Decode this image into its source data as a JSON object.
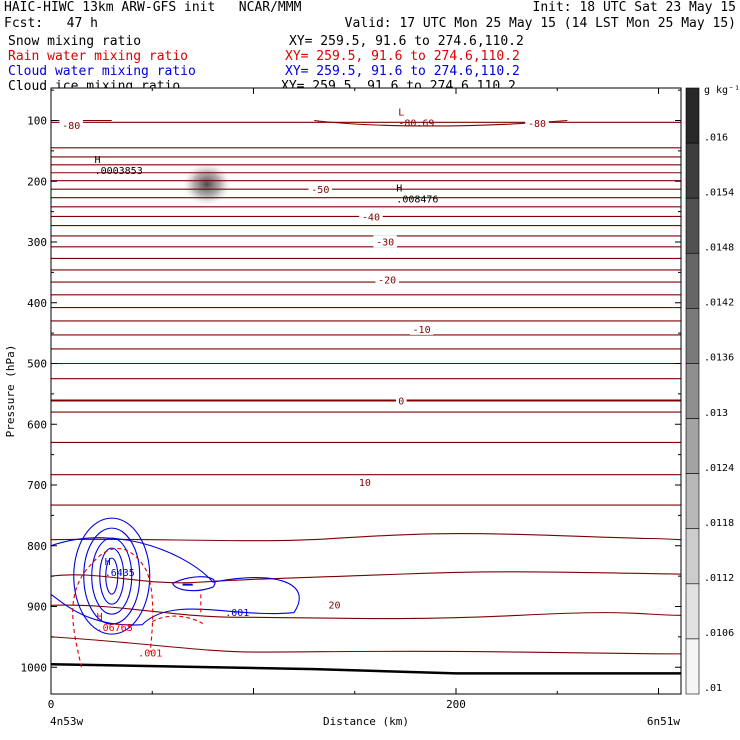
{
  "header": {
    "title_left": "HAIC-HIWC 13km ARW-GFS init   NCAR/MMM",
    "title_right": "Init: 18 UTC Sat 23 May 15",
    "fcst": "Fcst:   47 h",
    "valid": "Valid: 17 UTC Mon 25 May 15 (14 LST Mon 25 May 15)",
    "fields": [
      {
        "name": "Snow mixing ratio",
        "xy": "XY= 259.5, 91.6 to 274.6,110.2",
        "color": "#000000"
      },
      {
        "name": "Rain water mixing ratio",
        "xy": "XY= 259.5, 91.6 to 274.6,110.2",
        "color": "#e00000"
      },
      {
        "name": "Cloud water mixing ratio",
        "xy": "XY= 259.5, 91.6 to 274.6,110.2",
        "color": "#0000dd"
      },
      {
        "name": "Cloud ice mixing ratio",
        "xy": "XY= 259.5, 91.6 to 274.6,110.2",
        "color": "#000000"
      }
    ]
  },
  "chart_data": {
    "type": "contour",
    "xlabel": "Distance (km)",
    "ylabel": "Pressure (hPa)",
    "xlim": [
      0,
      300
    ],
    "ylim": [
      1050,
      50
    ],
    "x_ticks": [
      {
        "value": 0,
        "label": "0"
      },
      {
        "value": 200,
        "label": "200"
      }
    ],
    "y_ticks": [
      {
        "value": 100,
        "label": "100"
      },
      {
        "value": 200,
        "label": "200"
      },
      {
        "value": 300,
        "label": "300"
      },
      {
        "value": 400,
        "label": "400"
      },
      {
        "value": 500,
        "label": "500"
      },
      {
        "value": 600,
        "label": "600"
      },
      {
        "value": 700,
        "label": "700"
      },
      {
        "value": 800,
        "label": "800"
      },
      {
        "value": 900,
        "label": "900"
      },
      {
        "value": 1000,
        "label": "1000"
      }
    ],
    "endpoints": {
      "left": "4n53w",
      "right": "6n51w"
    },
    "temperature_color": "#800000",
    "temperature_levels_hpa": [
      103,
      145,
      160,
      173,
      186,
      199,
      213,
      227,
      242,
      258,
      273,
      290,
      308,
      327,
      346,
      366,
      387,
      408,
      430,
      453,
      476,
      500,
      525,
      561,
      580,
      630,
      683,
      733,
      790,
      850,
      898
    ],
    "temperature_labels": [
      {
        "x": 10,
        "p": 107,
        "text": "-80"
      },
      {
        "x": 240,
        "p": 104,
        "text": "-80"
      },
      {
        "x": 133,
        "p": 213,
        "text": "-50"
      },
      {
        "x": 158,
        "p": 258,
        "text": "-40"
      },
      {
        "x": 165,
        "p": 299,
        "text": "-30"
      },
      {
        "x": 166,
        "p": 362,
        "text": "-20"
      },
      {
        "x": 183,
        "p": 443,
        "text": "-10"
      },
      {
        "x": 173,
        "p": 561,
        "text": "0"
      },
      {
        "x": 155,
        "p": 695,
        "text": "10"
      },
      {
        "x": 140,
        "p": 897,
        "text": "20"
      }
    ],
    "extrema": [
      {
        "kind": "L",
        "x": 173,
        "p": 92,
        "value": "-80.69",
        "color": "#800000"
      },
      {
        "kind": "H",
        "x": 23,
        "p": 170,
        "value": ".0003853",
        "color": "#000000"
      },
      {
        "kind": "H",
        "x": 172,
        "p": 217,
        "value": ".008476",
        "color": "#000000"
      },
      {
        "kind": "H",
        "x": 28,
        "p": 832,
        "value": ".6435",
        "color": "#0000dd"
      },
      {
        "kind": "H",
        "x": 24,
        "p": 922,
        "value": ".06765",
        "color": "#e00000"
      }
    ],
    "rain_label": {
      "x": 49,
      "p": 982,
      "text": ".001"
    },
    "cloud_water_label": {
      "x": 92,
      "p": 916,
      "text": ".001"
    },
    "cloud_ice_maximum": {
      "x": 77,
      "p": 205
    },
    "colorbar": {
      "unit": "g kg⁻¹",
      "labels": [
        ".016",
        ".0154",
        ".0148",
        ".0142",
        ".0136",
        ".013",
        ".0124",
        ".0118",
        ".0112",
        ".0106",
        ".01"
      ]
    }
  }
}
